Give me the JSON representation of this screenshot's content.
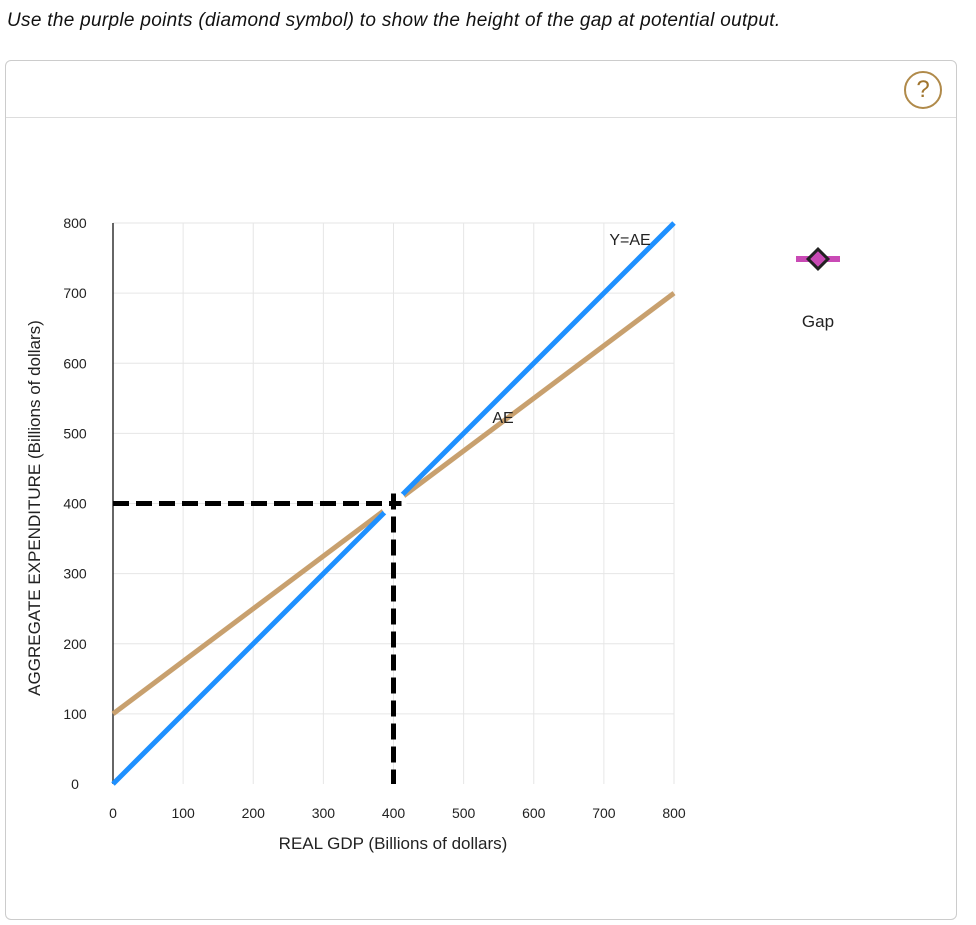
{
  "instruction": "Use the purple points (diamond symbol) to show the height of the gap at potential output.",
  "help_label": "?",
  "legend": {
    "label": "Gap",
    "color": "#c94ab5"
  },
  "chart_data": {
    "type": "line",
    "xlabel": "REAL GDP (Billions of dollars)",
    "ylabel": "AGGREGATE EXPENDITURE (Billions of dollars)",
    "xlim": [
      0,
      800
    ],
    "ylim": [
      0,
      800
    ],
    "xticks": [
      "0",
      "100",
      "200",
      "300",
      "400",
      "500",
      "600",
      "700",
      "800"
    ],
    "yticks": [
      "0",
      "100",
      "200",
      "300",
      "400",
      "500",
      "600",
      "700",
      "800"
    ],
    "grid": true,
    "series": [
      {
        "name": "Y=AE",
        "color": "#1e90ff",
        "x": [
          0,
          800
        ],
        "y": [
          0,
          800
        ]
      },
      {
        "name": "AE",
        "color": "#c8a06e",
        "x": [
          0,
          800
        ],
        "y": [
          100,
          700
        ]
      }
    ],
    "reference_point": {
      "x": 400,
      "y": 400,
      "style": "dashed black"
    }
  }
}
